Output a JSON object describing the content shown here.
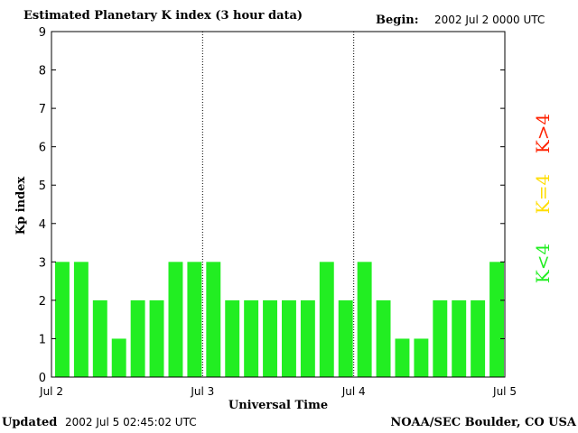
{
  "header": {
    "title": "Estimated Planetary K index (3 hour data)",
    "begin_label": "Begin:",
    "begin_value": "2002 Jul 2 0000 UTC"
  },
  "footer": {
    "updated_label": "Updated",
    "updated_value": "2002 Jul  5 02:45:02 UTC",
    "org": "NOAA/SEC Boulder, CO USA"
  },
  "legend": [
    {
      "label": "K>4",
      "color": "#ff2200"
    },
    {
      "label": "K=4",
      "color": "#ffdd00"
    },
    {
      "label": "K<4",
      "color": "#22ee22"
    }
  ],
  "chart_data": {
    "type": "bar",
    "ylabel": "Kp index",
    "xlabel": "Universal Time",
    "ylim": [
      0,
      9
    ],
    "yticks": [
      0,
      1,
      2,
      3,
      4,
      5,
      6,
      7,
      8,
      9
    ],
    "xtick_labels": [
      "Jul 2",
      "Jul 3",
      "Jul 4",
      "Jul 5"
    ],
    "bar_color": "#22ee22",
    "values": [
      3,
      3,
      2,
      1,
      2,
      2,
      3,
      3,
      3,
      2,
      2,
      2,
      2,
      2,
      3,
      2,
      3,
      2,
      1,
      1,
      2,
      2,
      2,
      3
    ]
  }
}
